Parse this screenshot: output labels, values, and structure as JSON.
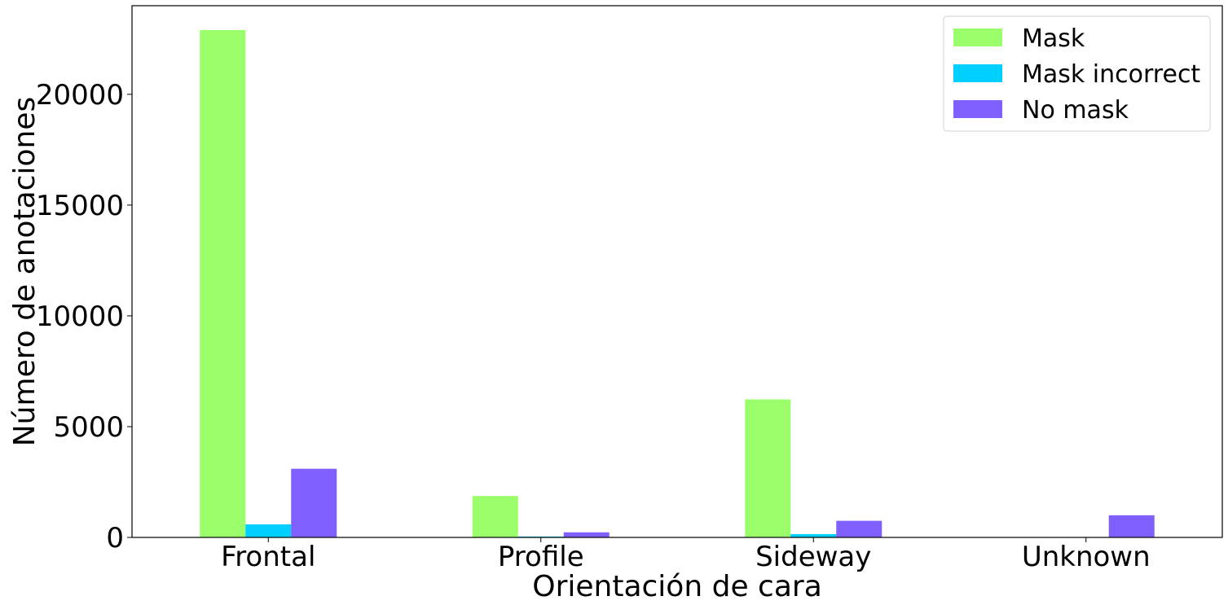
{
  "chart_data": {
    "type": "bar",
    "categories": [
      "Frontal",
      "Profile",
      "Sideway",
      "Unknown"
    ],
    "series": [
      {
        "name": "Mask",
        "color": "#9bff6b",
        "values": [
          22900,
          1870,
          6230,
          0
        ]
      },
      {
        "name": "Mask incorrect",
        "color": "#00d0ff",
        "values": [
          590,
          40,
          150,
          0
        ]
      },
      {
        "name": "No mask",
        "color": "#805fff",
        "values": [
          3100,
          230,
          750,
          1000
        ]
      }
    ],
    "title": "",
    "xlabel": "Orientación de cara",
    "ylabel": "Número de anotaciones",
    "ylim": [
      0,
      24000
    ],
    "yticks": [
      0,
      5000,
      10000,
      15000,
      20000
    ],
    "grid": false,
    "legend": "top-right"
  }
}
